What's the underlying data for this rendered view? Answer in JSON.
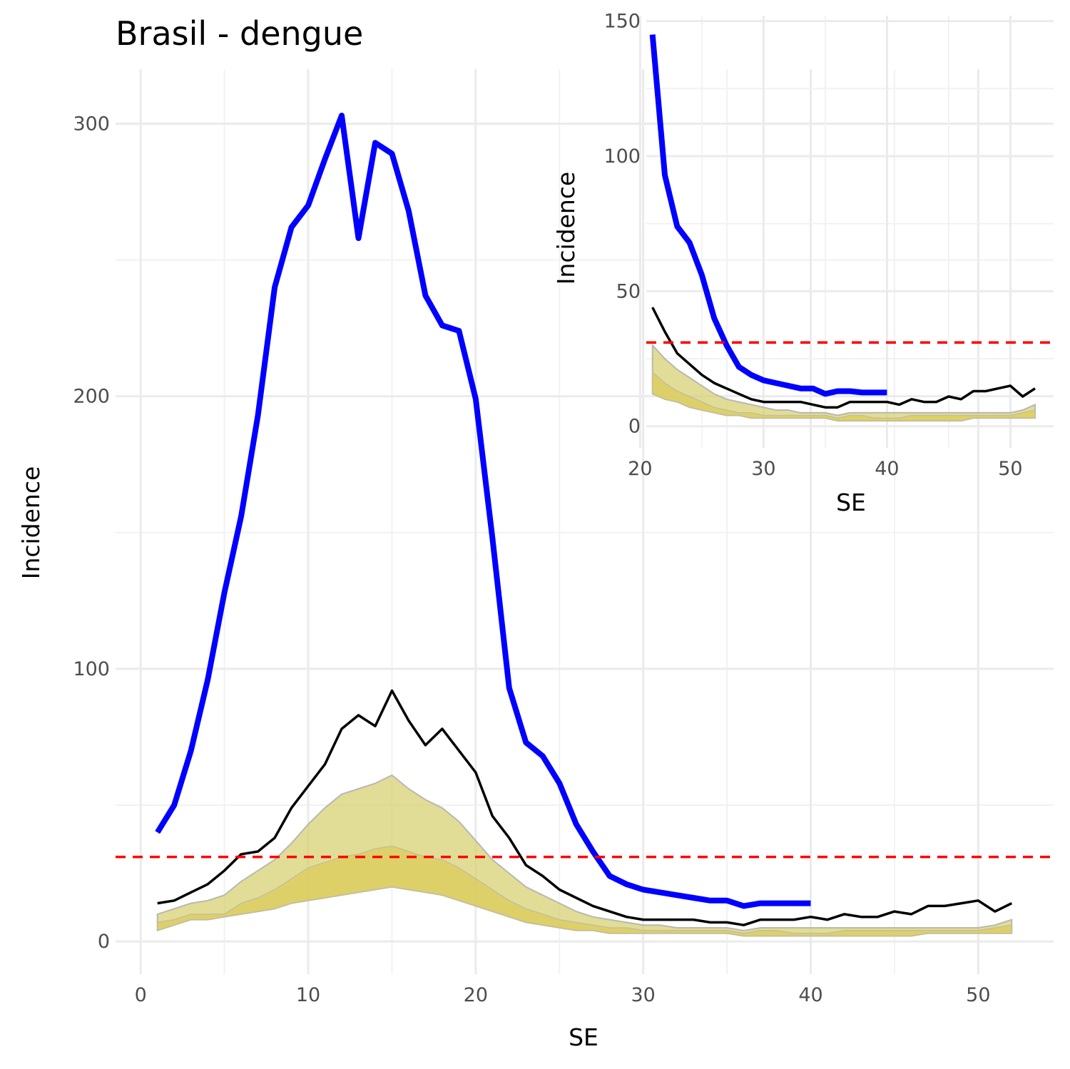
{
  "chart_data": [
    {
      "type": "line",
      "title": "Brasil - dengue",
      "xlabel": "SE",
      "ylabel": "Incidence",
      "xlim": [
        -1.5,
        54.5
      ],
      "ylim": [
        -12,
        320
      ],
      "x_ticks": [
        0,
        10,
        20,
        30,
        40,
        50
      ],
      "y_ticks": [
        0,
        100,
        200,
        300
      ],
      "threshold": 31,
      "colors": {
        "current": "#0000ff",
        "previous": "#000000",
        "threshold": "#ff0000",
        "band": "#d4cf6a",
        "band_inner": "#dccb5a"
      },
      "series": [
        {
          "role": "current_year",
          "x": [
            1,
            2,
            3,
            4,
            5,
            6,
            7,
            8,
            9,
            10,
            11,
            12,
            13,
            14,
            15,
            16,
            17,
            18,
            19,
            20,
            21,
            22,
            23,
            24,
            25,
            26,
            27,
            28,
            29,
            30,
            31,
            32,
            33,
            34,
            35,
            36,
            37,
            38,
            39,
            40
          ],
          "values": [
            40,
            50,
            70,
            96,
            128,
            156,
            193,
            240,
            262,
            270,
            287,
            303,
            258,
            293,
            289,
            268,
            237,
            226,
            224,
            199,
            148,
            93,
            73,
            68,
            58,
            43,
            33,
            24,
            21,
            19,
            18,
            17,
            16,
            15,
            15,
            13,
            14,
            14,
            14,
            14
          ]
        },
        {
          "role": "previous_year",
          "x": [
            1,
            2,
            3,
            4,
            5,
            6,
            7,
            8,
            9,
            10,
            11,
            12,
            13,
            14,
            15,
            16,
            17,
            18,
            19,
            20,
            21,
            22,
            23,
            24,
            25,
            26,
            27,
            28,
            29,
            30,
            31,
            32,
            33,
            34,
            35,
            36,
            37,
            38,
            39,
            40,
            41,
            42,
            43,
            44,
            45,
            46,
            47,
            48,
            49,
            50,
            51,
            52
          ],
          "values": [
            14,
            15,
            18,
            21,
            26,
            32,
            33,
            38,
            49,
            57,
            65,
            78,
            83,
            79,
            92,
            81,
            72,
            78,
            70,
            62,
            46,
            38,
            28,
            24,
            19,
            16,
            13,
            11,
            9,
            8,
            8,
            8,
            8,
            7,
            7,
            6,
            8,
            8,
            8,
            9,
            8,
            10,
            9,
            9,
            11,
            10,
            13,
            13,
            14,
            15,
            11,
            14
          ]
        },
        {
          "role": "band_upper",
          "x": [
            1,
            2,
            3,
            4,
            5,
            6,
            7,
            8,
            9,
            10,
            11,
            12,
            13,
            14,
            15,
            16,
            17,
            18,
            19,
            20,
            21,
            22,
            23,
            24,
            25,
            26,
            27,
            28,
            29,
            30,
            31,
            32,
            33,
            34,
            35,
            36,
            37,
            38,
            39,
            40,
            41,
            42,
            43,
            44,
            45,
            46,
            47,
            48,
            49,
            50,
            51,
            52
          ],
          "values": [
            10,
            12,
            14,
            15,
            17,
            22,
            26,
            30,
            36,
            43,
            49,
            54,
            56,
            58,
            61,
            56,
            52,
            49,
            44,
            37,
            30,
            25,
            20,
            17,
            14,
            11,
            9,
            8,
            7,
            6,
            6,
            5,
            5,
            5,
            5,
            4,
            5,
            5,
            5,
            5,
            5,
            5,
            5,
            5,
            5,
            5,
            5,
            5,
            5,
            5,
            6,
            8
          ]
        },
        {
          "role": "band_mid",
          "x": [
            1,
            2,
            3,
            4,
            5,
            6,
            7,
            8,
            9,
            10,
            11,
            12,
            13,
            14,
            15,
            16,
            17,
            18,
            19,
            20,
            21,
            22,
            23,
            24,
            25,
            26,
            27,
            28,
            29,
            30,
            31,
            32,
            33,
            34,
            35,
            36,
            37,
            38,
            39,
            40,
            41,
            42,
            43,
            44,
            45,
            46,
            47,
            48,
            49,
            50,
            51,
            52
          ],
          "values": [
            7,
            8,
            10,
            10,
            10,
            14,
            16,
            19,
            23,
            27,
            29,
            31,
            32,
            34,
            35,
            33,
            31,
            30,
            27,
            23,
            19,
            15,
            12,
            10,
            8,
            7,
            6,
            5,
            5,
            4,
            4,
            4,
            4,
            4,
            4,
            3,
            4,
            4,
            3,
            3,
            3,
            4,
            4,
            4,
            4,
            4,
            4,
            4,
            4,
            4,
            5,
            6
          ]
        },
        {
          "role": "band_lower",
          "x": [
            1,
            2,
            3,
            4,
            5,
            6,
            7,
            8,
            9,
            10,
            11,
            12,
            13,
            14,
            15,
            16,
            17,
            18,
            19,
            20,
            21,
            22,
            23,
            24,
            25,
            26,
            27,
            28,
            29,
            30,
            31,
            32,
            33,
            34,
            35,
            36,
            37,
            38,
            39,
            40,
            41,
            42,
            43,
            44,
            45,
            46,
            47,
            48,
            49,
            50,
            51,
            52
          ],
          "values": [
            4,
            6,
            8,
            8,
            9,
            10,
            11,
            12,
            14,
            15,
            16,
            17,
            18,
            19,
            20,
            19,
            18,
            17,
            15,
            13,
            11,
            9,
            7,
            6,
            5,
            4,
            4,
            3,
            3,
            3,
            3,
            3,
            3,
            3,
            3,
            2,
            2,
            2,
            2,
            2,
            2,
            2,
            2,
            2,
            2,
            2,
            3,
            3,
            3,
            3,
            3,
            3
          ]
        }
      ]
    },
    {
      "type": "line",
      "title": "",
      "xlabel": "SE",
      "ylabel": "Incidence",
      "xlim": [
        20.5,
        53.5
      ],
      "ylim": [
        -8,
        152
      ],
      "x_ticks": [
        20,
        30,
        40,
        50
      ],
      "y_ticks": [
        0,
        50,
        100,
        150
      ],
      "threshold": 31,
      "series": [
        {
          "role": "current_year",
          "x": [
            21,
            22,
            23,
            24,
            25,
            26,
            27,
            28,
            29,
            30,
            31,
            32,
            33,
            34,
            35,
            36,
            37,
            38,
            39,
            40
          ],
          "values": [
            145,
            93,
            74,
            68,
            56,
            40,
            30,
            22,
            19,
            17,
            16,
            15,
            14,
            14,
            12,
            13,
            13,
            12.5,
            12.5,
            12.5
          ]
        },
        {
          "role": "previous_year",
          "x": [
            21,
            22,
            23,
            24,
            25,
            26,
            27,
            28,
            29,
            30,
            31,
            32,
            33,
            34,
            35,
            36,
            37,
            38,
            39,
            40,
            41,
            42,
            43,
            44,
            45,
            46,
            47,
            48,
            49,
            50,
            51,
            52
          ],
          "values": [
            44,
            35,
            27,
            23,
            19,
            16,
            14,
            12,
            10,
            9,
            9,
            9,
            9,
            8,
            7,
            7,
            9,
            9,
            9,
            9,
            8,
            10,
            9,
            9,
            11,
            10,
            13,
            13,
            14,
            15,
            11,
            14
          ]
        },
        {
          "role": "band_upper",
          "x": [
            21,
            22,
            23,
            24,
            25,
            26,
            27,
            28,
            29,
            30,
            31,
            32,
            33,
            34,
            35,
            36,
            37,
            38,
            39,
            40,
            41,
            42,
            43,
            44,
            45,
            46,
            47,
            48,
            49,
            50,
            51,
            52
          ],
          "values": [
            30,
            25,
            21,
            18,
            15,
            12,
            10,
            9,
            8,
            7,
            6,
            6,
            5,
            5,
            5,
            4,
            5,
            5,
            5,
            5,
            5,
            5,
            5,
            5,
            5,
            5,
            5,
            5,
            5,
            5,
            6,
            8
          ]
        },
        {
          "role": "band_mid",
          "x": [
            21,
            22,
            23,
            24,
            25,
            26,
            27,
            28,
            29,
            30,
            31,
            32,
            33,
            34,
            35,
            36,
            37,
            38,
            39,
            40,
            41,
            42,
            43,
            44,
            45,
            46,
            47,
            48,
            49,
            50,
            51,
            52
          ],
          "values": [
            20,
            16,
            13,
            11,
            9,
            7,
            6,
            5,
            5,
            4,
            4,
            4,
            4,
            4,
            4,
            3,
            4,
            4,
            3,
            3,
            3,
            4,
            4,
            4,
            4,
            4,
            4,
            4,
            4,
            4,
            5,
            6
          ]
        },
        {
          "role": "band_lower",
          "x": [
            21,
            22,
            23,
            24,
            25,
            26,
            27,
            28,
            29,
            30,
            31,
            32,
            33,
            34,
            35,
            36,
            37,
            38,
            39,
            40,
            41,
            42,
            43,
            44,
            45,
            46,
            47,
            48,
            49,
            50,
            51,
            52
          ],
          "values": [
            12,
            10,
            9,
            7,
            6,
            5,
            4,
            4,
            3,
            3,
            3,
            3,
            3,
            3,
            3,
            2,
            2,
            2,
            2,
            2,
            2,
            2,
            2,
            2,
            2,
            2,
            3,
            3,
            3,
            3,
            3,
            3
          ]
        }
      ]
    }
  ]
}
